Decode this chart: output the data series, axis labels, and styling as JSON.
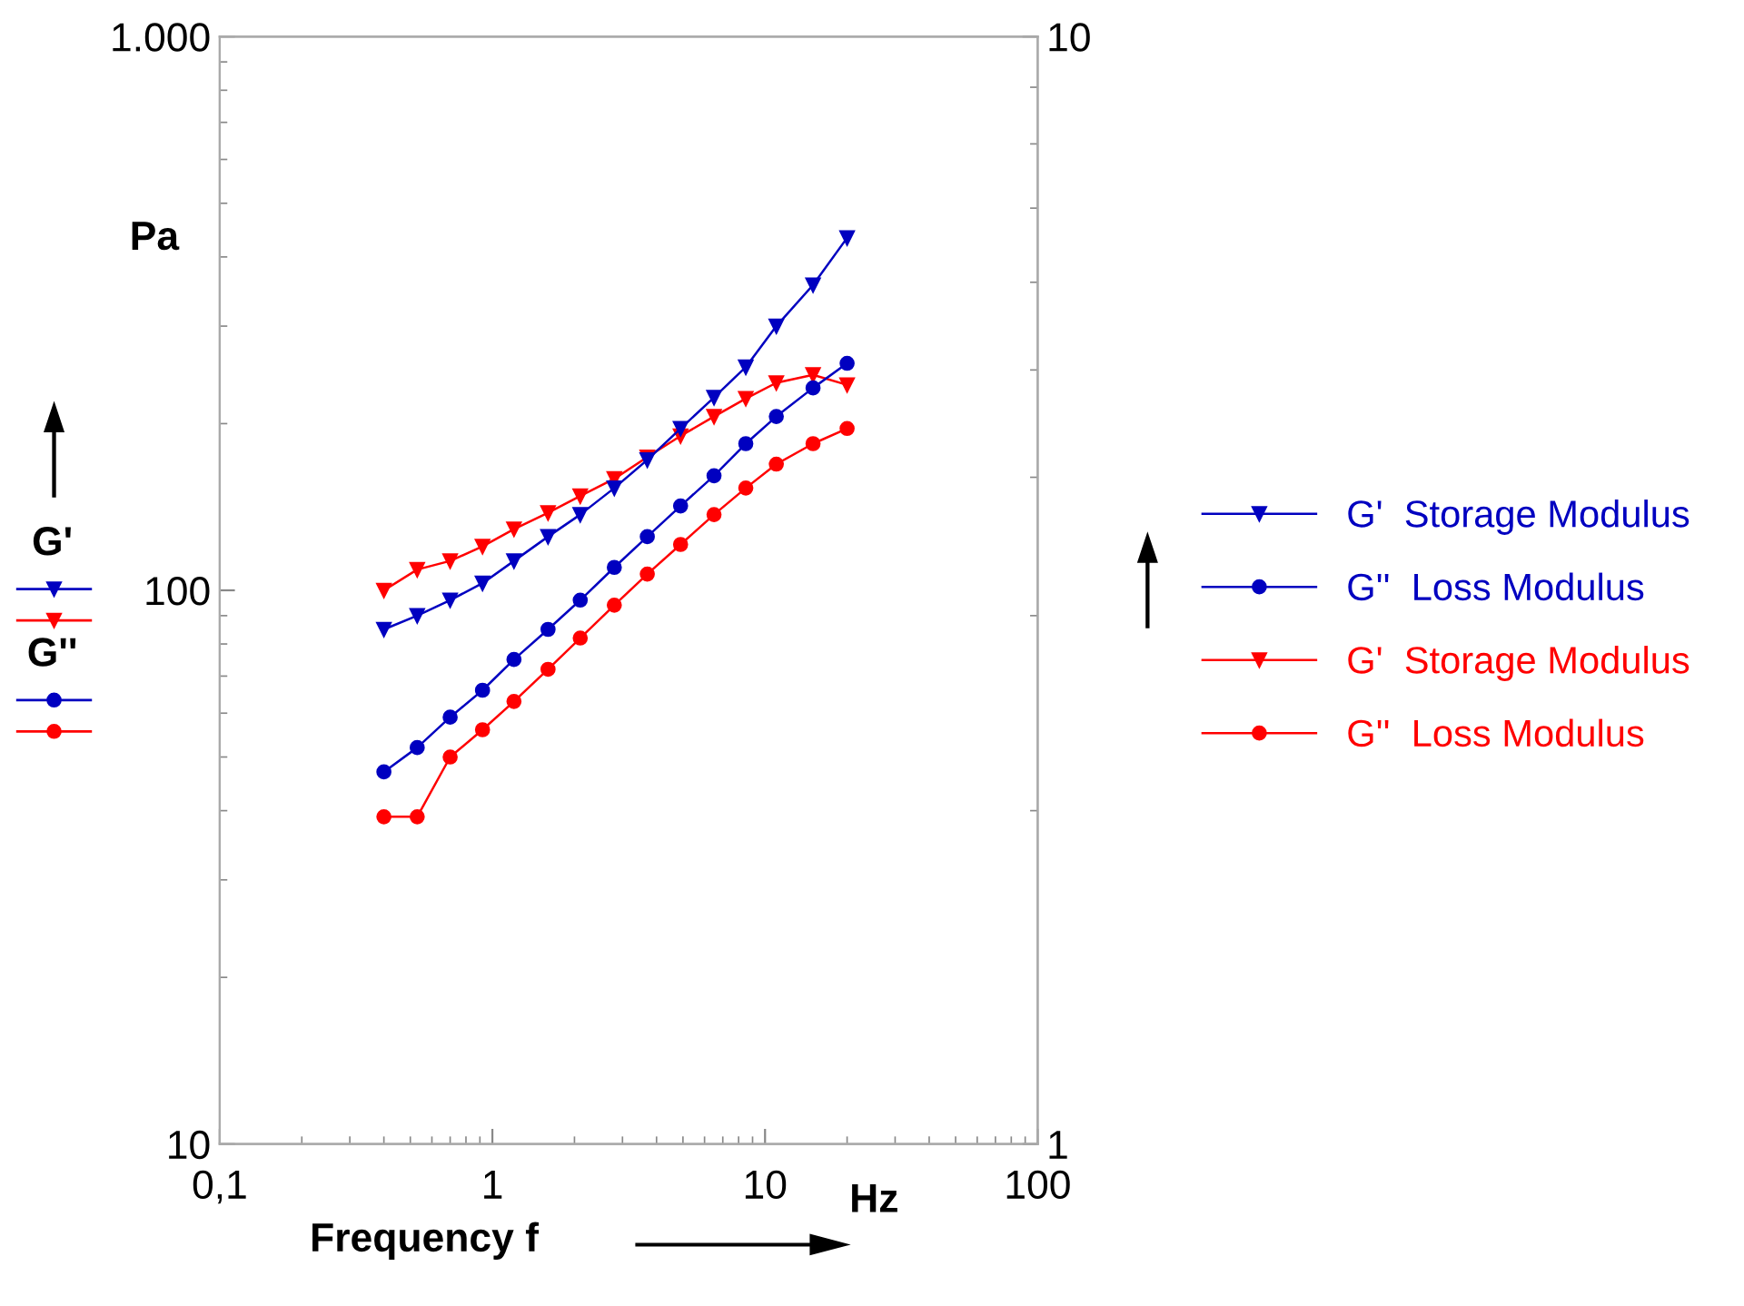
{
  "chart_data": {
    "type": "line",
    "xlabel": "Frequency f",
    "ylabel": "Pa",
    "x": [
      0.4,
      0.53,
      0.7,
      0.92,
      1.2,
      1.6,
      2.1,
      2.8,
      3.7,
      4.9,
      6.5,
      8.5,
      11,
      15,
      20
    ],
    "series": [
      {
        "name": "G'  Storage Modulus",
        "color": "#0000c0",
        "marker": "triangle",
        "values": [
          85,
          90,
          96,
          103,
          113,
          125,
          137,
          153,
          172,
          196,
          223,
          253,
          300,
          356,
          433
        ]
      },
      {
        "name": "G''  Loss Modulus",
        "color": "#0000c0",
        "marker": "circle",
        "values": [
          47,
          52,
          59,
          66,
          75,
          85,
          96,
          110,
          125,
          142,
          161,
          184,
          206,
          232,
          257
        ]
      },
      {
        "name": "G'  Storage Modulus",
        "color": "#ff0000",
        "marker": "triangle",
        "values": [
          100,
          109,
          113,
          120,
          129,
          138,
          148,
          159,
          174,
          190,
          206,
          222,
          237,
          245,
          235
        ]
      },
      {
        "name": "G''  Loss Modulus",
        "color": "#ff0000",
        "marker": "circle",
        "values": [
          39,
          39,
          50,
          56,
          63,
          72,
          82,
          94,
          107,
          121,
          137,
          153,
          169,
          184,
          196
        ]
      }
    ],
    "log": "xy",
    "xlim": [
      0.1,
      100
    ],
    "xticks": [
      {
        "value": 0.1,
        "label": "0,1"
      },
      1,
      10,
      100
    ],
    "ylim": [
      10,
      1000
    ],
    "yticks": [
      10,
      100,
      {
        "value": 1000,
        "label": "1.000"
      }
    ],
    "y2lim": [
      1,
      10
    ],
    "y2ticks": [
      1,
      10
    ],
    "annotations": [
      "Hz",
      "G'",
      "G''"
    ],
    "legend": "right",
    "grid": false
  }
}
